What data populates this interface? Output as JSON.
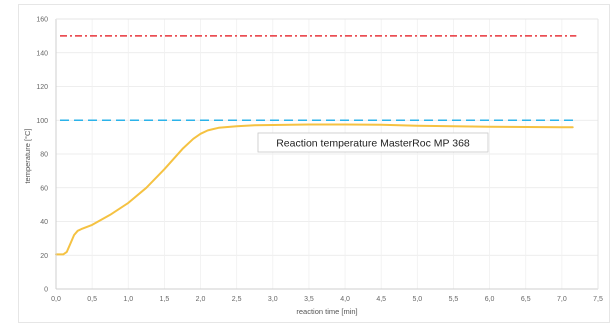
{
  "chart_data": {
    "type": "line",
    "xlabel": "reaction time [min]",
    "ylabel": "temperature [°C]",
    "xlim": [
      0,
      7.5
    ],
    "ylim": [
      0,
      160
    ],
    "xticks": [
      "0,0",
      "0,5",
      "1,0",
      "1,5",
      "2,0",
      "2,5",
      "3,0",
      "3,5",
      "4,0",
      "4,5",
      "5,0",
      "5,5",
      "6,0",
      "6,5",
      "7,0",
      "7,5"
    ],
    "yticks": [
      "0",
      "20",
      "40",
      "60",
      "80",
      "100",
      "120",
      "140",
      "160"
    ],
    "grid": true,
    "annotation": "Reaction temperature MasterRoc MP 368",
    "reference_lines": [
      {
        "y": 150,
        "color": "#e8353b",
        "style": "dash-dot"
      },
      {
        "y": 100,
        "color": "#2bb3ea",
        "style": "dashed"
      }
    ],
    "series": [
      {
        "color": "#f5c242",
        "x": [
          0,
          0.1,
          0.15,
          0.2,
          0.25,
          0.3,
          0.35,
          0.5,
          0.75,
          1.0,
          1.25,
          1.5,
          1.75,
          1.9,
          2.0,
          2.1,
          2.25,
          2.5,
          2.75,
          3.0,
          3.5,
          4.0,
          4.5,
          5.0,
          5.5,
          6.0,
          6.5,
          7.0,
          7.15
        ],
        "y": [
          20.5,
          20.5,
          22,
          27,
          32,
          34.5,
          35.5,
          38,
          44,
          51,
          60,
          71,
          83,
          89,
          92,
          94,
          95.5,
          96.5,
          97,
          97.2,
          97.5,
          97.5,
          97.3,
          96.8,
          96.5,
          96.2,
          96,
          95.8,
          95.8
        ]
      }
    ]
  }
}
